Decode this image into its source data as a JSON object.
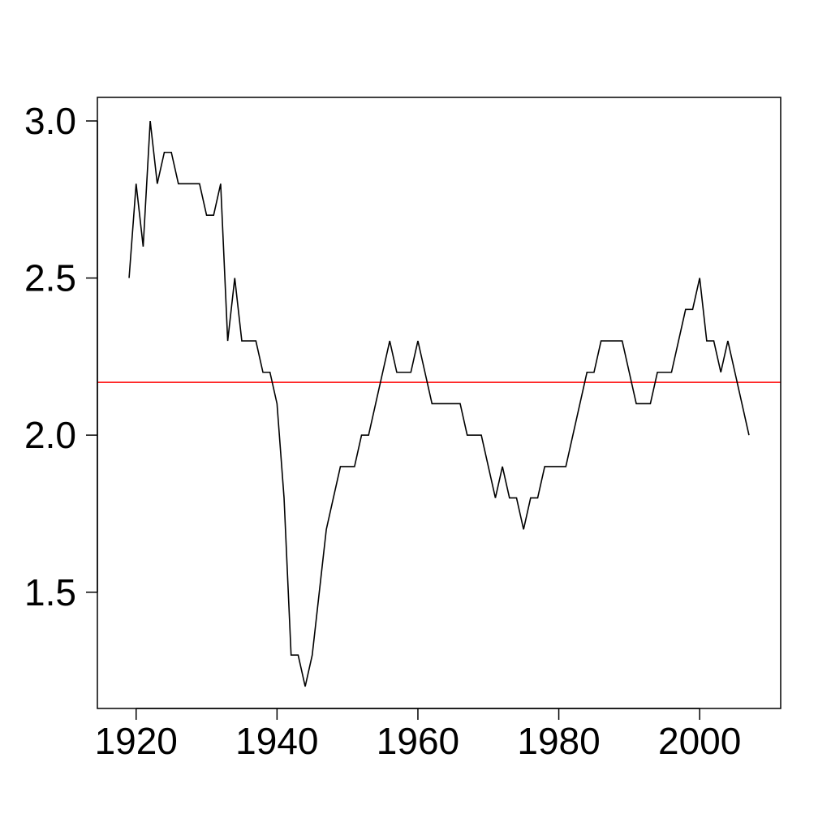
{
  "chart_data": {
    "type": "line",
    "title": "",
    "xlabel": "",
    "ylabel": "",
    "xlim": [
      1914.5,
      2011.5
    ],
    "ylim": [
      1.13,
      3.075
    ],
    "x_ticks": [
      1920,
      1940,
      1960,
      1980,
      2000
    ],
    "x_tick_labels": [
      "1920",
      "1940",
      "1960",
      "1980",
      "2000"
    ],
    "y_ticks": [
      1.5,
      2.0,
      2.5,
      3.0
    ],
    "y_tick_labels": [
      "1.5",
      "2.0",
      "2.5",
      "3.0"
    ],
    "grid": false,
    "legend": "none",
    "series": [
      {
        "color": "#000000",
        "x": [
          1919,
          1920,
          1921,
          1922,
          1923,
          1924,
          1925,
          1926,
          1927,
          1928,
          1929,
          1930,
          1931,
          1932,
          1933,
          1934,
          1935,
          1936,
          1937,
          1938,
          1939,
          1940,
          1941,
          1942,
          1943,
          1944,
          1945,
          1946,
          1947,
          1948,
          1949,
          1950,
          1951,
          1952,
          1953,
          1954,
          1955,
          1956,
          1957,
          1958,
          1959,
          1960,
          1961,
          1962,
          1963,
          1964,
          1965,
          1966,
          1967,
          1968,
          1969,
          1970,
          1971,
          1972,
          1973,
          1974,
          1975,
          1976,
          1977,
          1978,
          1979,
          1980,
          1981,
          1982,
          1983,
          1984,
          1985,
          1986,
          1987,
          1988,
          1989,
          1990,
          1991,
          1992,
          1993,
          1994,
          1995,
          1996,
          1997,
          1998,
          1999,
          2000,
          2001,
          2002,
          2003,
          2004,
          2005,
          2006,
          2007
        ],
        "y": [
          2.5,
          2.8,
          2.6,
          3.0,
          2.8,
          2.9,
          2.9,
          2.8,
          2.8,
          2.8,
          2.8,
          2.7,
          2.7,
          2.8,
          2.3,
          2.5,
          2.3,
          2.3,
          2.3,
          2.2,
          2.2,
          2.1,
          1.8,
          1.3,
          1.3,
          1.2,
          1.3,
          1.5,
          1.7,
          1.8,
          1.9,
          1.9,
          1.9,
          2.0,
          2.0,
          2.1,
          2.2,
          2.3,
          2.2,
          2.2,
          2.2,
          2.3,
          2.2,
          2.1,
          2.1,
          2.1,
          2.1,
          2.1,
          2.0,
          2.0,
          2.0,
          1.9,
          1.8,
          1.9,
          1.8,
          1.8,
          1.7,
          1.8,
          1.8,
          1.9,
          1.9,
          1.9,
          1.9,
          2.0,
          2.1,
          2.2,
          2.2,
          2.3,
          2.3,
          2.3,
          2.3,
          2.2,
          2.1,
          2.1,
          2.1,
          2.2,
          2.2,
          2.2,
          2.3,
          2.4,
          2.4,
          2.5,
          2.3,
          2.3,
          2.2,
          2.3,
          2.2,
          2.1,
          2.0
        ]
      }
    ],
    "reference_lines": [
      {
        "orientation": "horizontal",
        "y": 2.168,
        "color": "#ff0000"
      }
    ]
  }
}
